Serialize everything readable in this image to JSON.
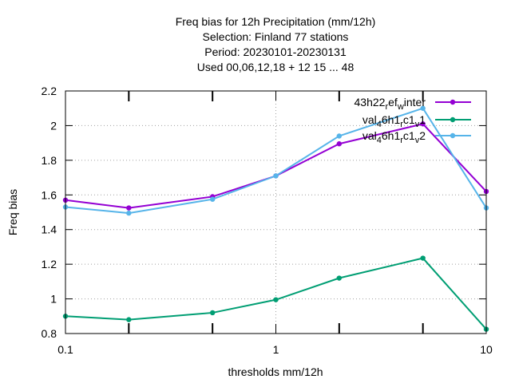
{
  "chart_data": {
    "type": "line",
    "title": [
      "Freq bias  for 12h Precipitation (mm/12h)",
      "Selection: Finland     77 stations",
      "Period: 20230101-20230131",
      "Used  00,06,12,18  + 12 15 ... 48"
    ],
    "xlabel": "thresholds mm/12h",
    "ylabel": "Freq bias",
    "xscale": "log",
    "xlim": [
      0.1,
      10
    ],
    "ylim": [
      0.8,
      2.2
    ],
    "xticks": [
      0.1,
      1,
      10
    ],
    "xtick_labels": [
      "0.1",
      "1",
      "10"
    ],
    "xminor": [
      0.2,
      0.5,
      2,
      5
    ],
    "yticks": [
      0.8,
      1.0,
      1.2,
      1.4,
      1.6,
      1.8,
      2.0,
      2.2
    ],
    "ytick_labels": [
      "0.8",
      "1",
      "1.2",
      "1.4",
      "1.6",
      "1.8",
      "2",
      "2.2"
    ],
    "grid": true,
    "legend_position": "top-right",
    "x": [
      0.1,
      0.2,
      0.5,
      1,
      2,
      5,
      10
    ],
    "series": [
      {
        "name": "43h22_ref_winter",
        "legend_base": [
          "43h22",
          "ef",
          "inter"
        ],
        "legend_sub": [
          "r",
          "w"
        ],
        "color": "#9400d3",
        "values": [
          1.57,
          1.525,
          1.59,
          1.71,
          1.895,
          2.01,
          1.62
        ]
      },
      {
        "name": "val_46h1_rc1_v1",
        "legend_base": [
          "val",
          "6h1",
          "c1",
          "1"
        ],
        "legend_sub": [
          "4",
          "r",
          "v"
        ],
        "color": "#009e73",
        "values": [
          0.9,
          0.88,
          0.92,
          0.995,
          1.12,
          1.235,
          0.825
        ]
      },
      {
        "name": "val_46h1_rc1_v2",
        "legend_base": [
          "val",
          "6h1",
          "c1",
          "2"
        ],
        "legend_sub": [
          "4",
          "r",
          "v"
        ],
        "color": "#56b4e9",
        "values": [
          1.53,
          1.495,
          1.575,
          1.71,
          1.94,
          2.1,
          1.525
        ]
      }
    ]
  }
}
